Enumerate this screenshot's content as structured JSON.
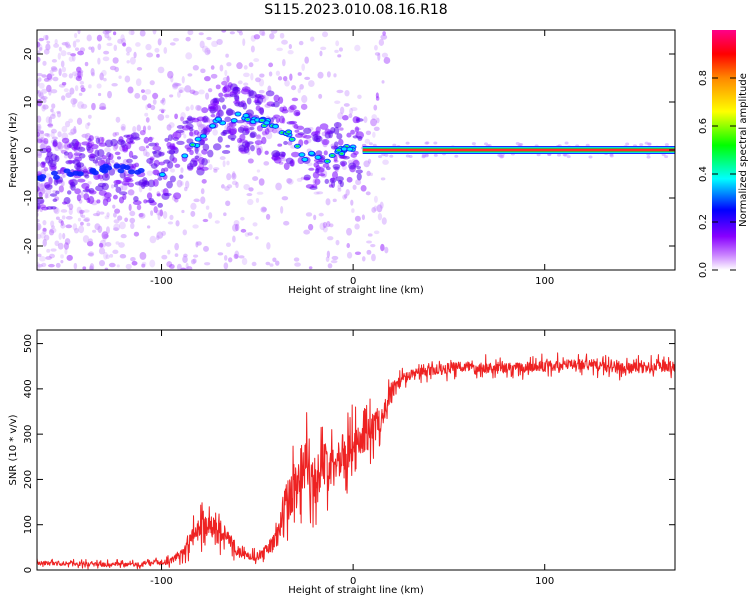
{
  "title": "S115.2023.010.08.16.R18",
  "colors": {
    "line": "#ee2222",
    "ridge": "#22cc44",
    "axis": "#000000"
  },
  "chart_data": [
    {
      "type": "heatmap",
      "xlabel": "Height of straight line (km)",
      "ylabel": "Frequency (Hz)",
      "xlim": [
        -165,
        168
      ],
      "ylim": [
        -25,
        25
      ],
      "x_ticks": [
        -100,
        0,
        100
      ],
      "x_tick_labels": [
        "-100",
        "0",
        "100"
      ],
      "y_ticks": [
        -20,
        -10,
        0,
        10,
        20
      ],
      "y_tick_labels": [
        "-20",
        "-10",
        "0",
        "10",
        "20"
      ],
      "colorbar": {
        "label": "Normalized spectral amplitude",
        "range": [
          0,
          1
        ],
        "ticks": [
          0.0,
          0.2,
          0.4,
          0.6,
          0.8
        ],
        "tick_labels": [
          "0.0",
          "0.2",
          "0.4",
          "0.6",
          "0.8"
        ],
        "colors": [
          "#ffffff",
          "#8800ff",
          "#0000ff",
          "#00ffff",
          "#00ff00",
          "#ffff00",
          "#ff8800",
          "#ff0000",
          "#ff0088"
        ]
      },
      "ridge": {
        "x": [
          -165,
          -150,
          -130,
          -110,
          -100,
          -90,
          -80,
          -70,
          -60,
          -50,
          -40,
          -30,
          -25,
          -20,
          -15,
          -10,
          -5,
          0,
          5,
          30,
          60,
          100,
          130,
          168
        ],
        "y": [
          -6,
          -5,
          -4,
          -4,
          -5,
          -2,
          2,
          6,
          7,
          6,
          5,
          2,
          -2,
          -1,
          -2,
          -1,
          0,
          0,
          0,
          0,
          0,
          0,
          0,
          0
        ]
      }
    },
    {
      "type": "line",
      "xlabel": "Height of straight line (km)",
      "ylabel": "SNR (10 * v/v)",
      "xlim": [
        -165,
        168
      ],
      "ylim": [
        0,
        530
      ],
      "x_ticks": [
        -100,
        0,
        100
      ],
      "x_tick_labels": [
        "-100",
        "0",
        "100"
      ],
      "y_ticks": [
        0,
        100,
        200,
        300,
        400,
        500
      ],
      "y_tick_labels": [
        "0",
        "100",
        "200",
        "300",
        "400",
        "500"
      ],
      "series": [
        {
          "x": [
            -165,
            -150,
            -130,
            -110,
            -95,
            -88,
            -80,
            -75,
            -70,
            -65,
            -60,
            -55,
            -50,
            -45,
            -40,
            -35,
            -30,
            -25,
            -20,
            -15,
            -10,
            -5,
            0,
            5,
            10,
            15,
            20,
            25,
            30,
            40,
            50,
            60,
            80,
            100,
            120,
            140,
            168
          ],
          "values": [
            15,
            15,
            12,
            12,
            20,
            45,
            95,
            100,
            90,
            70,
            40,
            30,
            30,
            45,
            70,
            140,
            190,
            250,
            200,
            230,
            250,
            260,
            270,
            290,
            310,
            340,
            390,
            420,
            430,
            440,
            445,
            450,
            445,
            450,
            455,
            445,
            450
          ],
          "noise": [
            8,
            8,
            8,
            8,
            10,
            25,
            40,
            40,
            40,
            30,
            20,
            15,
            15,
            20,
            40,
            100,
            110,
            90,
            90,
            80,
            80,
            70,
            70,
            60,
            60,
            50,
            40,
            20,
            20,
            20,
            20,
            20,
            20,
            20,
            20,
            20,
            20
          ]
        }
      ]
    }
  ]
}
